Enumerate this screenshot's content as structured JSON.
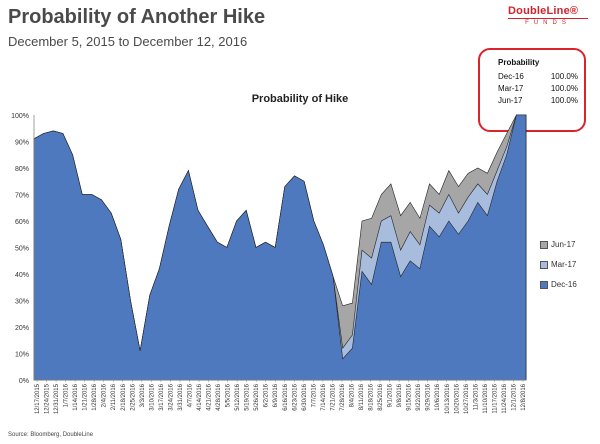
{
  "header": {
    "title": "Probability of Another Hike",
    "subtitle": "December 5, 2015 to December 12, 2016"
  },
  "logo": {
    "top": "DoubleLine®",
    "bottom": "FUNDS"
  },
  "probability_box": {
    "heading": "Probability",
    "rows": [
      {
        "label": "Dec-16",
        "value": "100.0%"
      },
      {
        "label": "Mar-17",
        "value": "100.0%"
      },
      {
        "label": "Jun-17",
        "value": "100.0%"
      }
    ]
  },
  "source": "Source: Bloomberg, DoubleLine",
  "colors": {
    "dec16": "#4f79bf",
    "mar17": "#a8bcdd",
    "jun17": "#a6a6a6",
    "highlight": "#d9242b"
  },
  "chart_data": {
    "type": "area",
    "title": "Probability of Hike",
    "ylim": [
      0,
      100
    ],
    "y_ticks": [
      "0%",
      "10%",
      "20%",
      "30%",
      "40%",
      "50%",
      "60%",
      "70%",
      "80%",
      "90%",
      "100%"
    ],
    "x_tick_labels": [
      "12/17/2015",
      "12/24/2015",
      "12/31/2015",
      "1/7/2016",
      "1/14/2016",
      "1/21/2016",
      "1/28/2016",
      "2/4/2016",
      "2/11/2016",
      "2/18/2016",
      "2/25/2016",
      "3/3/2016",
      "3/10/2016",
      "3/17/2016",
      "3/24/2016",
      "3/31/2016",
      "4/7/2016",
      "4/14/2016",
      "4/21/2016",
      "4/28/2016",
      "5/5/2016",
      "5/12/2016",
      "5/19/2016",
      "5/26/2016",
      "6/2/2016",
      "6/9/2016",
      "6/16/2016",
      "6/23/2016",
      "6/30/2016",
      "7/7/2016",
      "7/14/2016",
      "7/21/2016",
      "7/28/2016",
      "8/4/2016",
      "8/11/2016",
      "8/18/2016",
      "8/25/2016",
      "9/1/2016",
      "9/8/2016",
      "9/15/2016",
      "9/22/2016",
      "9/29/2016",
      "10/6/2016",
      "10/13/2016",
      "10/20/2016",
      "10/27/2016",
      "11/3/2016",
      "11/10/2016",
      "11/17/2016",
      "11/24/2016",
      "12/1/2016",
      "12/8/2016"
    ],
    "legend": [
      "Jun-17",
      "Mar-17",
      "Dec-16"
    ],
    "legend_position": "right",
    "grid": false,
    "series": [
      {
        "name": "Dec-16",
        "values": [
          91,
          93,
          94,
          93,
          85,
          70,
          70,
          68,
          63,
          53,
          30,
          11,
          32,
          42,
          58,
          72,
          79,
          64,
          58,
          52,
          50,
          60,
          64,
          50,
          52,
          50,
          73,
          77,
          75,
          60,
          51,
          39,
          8,
          12,
          41,
          36,
          52,
          52,
          39,
          45,
          42,
          58,
          54,
          60,
          55,
          60,
          67,
          62,
          75,
          85,
          100,
          100
        ]
      },
      {
        "name": "Mar-17",
        "values": [
          91,
          93,
          94,
          93,
          85,
          70,
          70,
          68,
          63,
          53,
          30,
          11,
          32,
          42,
          58,
          72,
          79,
          64,
          58,
          52,
          50,
          60,
          64,
          50,
          52,
          50,
          73,
          77,
          75,
          60,
          51,
          39,
          12,
          17,
          49,
          46,
          60,
          62,
          49,
          56,
          51,
          66,
          63,
          70,
          63,
          69,
          74,
          70,
          79,
          88,
          100,
          100
        ]
      },
      {
        "name": "Jun-17",
        "values": [
          91,
          93,
          94,
          93,
          85,
          70,
          70,
          68,
          63,
          53,
          30,
          11,
          32,
          42,
          58,
          72,
          79,
          64,
          58,
          52,
          50,
          60,
          64,
          50,
          52,
          50,
          73,
          77,
          75,
          60,
          51,
          39,
          28,
          29,
          60,
          61,
          70,
          74,
          62,
          67,
          61,
          74,
          70,
          79,
          73,
          78,
          80,
          78,
          86,
          93,
          100,
          100
        ]
      }
    ]
  }
}
